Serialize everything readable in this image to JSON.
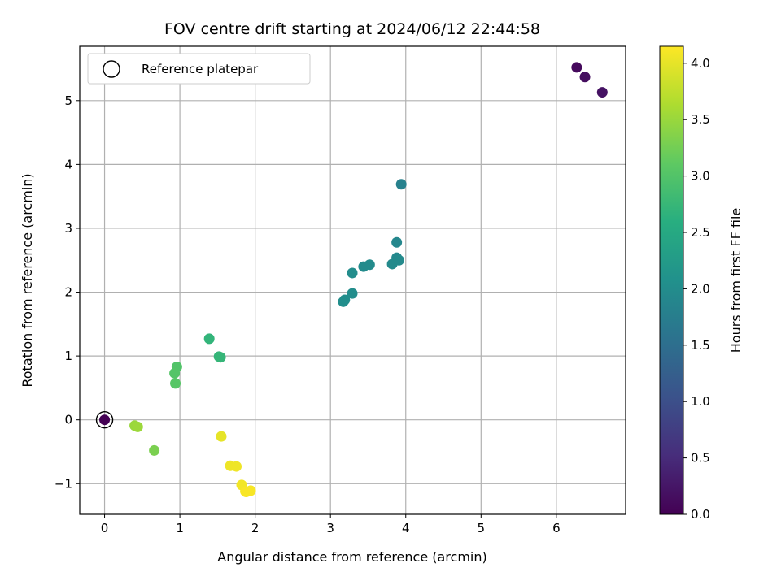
{
  "chart_data": {
    "type": "scatter",
    "title": "FOV centre drift starting at 2024/06/12 22:44:58",
    "xlabel": "Angular distance from reference (arcmin)",
    "ylabel": "Rotation from reference (arcmin)",
    "xlim": [
      -0.33,
      6.92
    ],
    "ylim": [
      -1.48,
      5.85
    ],
    "xticks": [
      0,
      1,
      2,
      3,
      4,
      5,
      6
    ],
    "yticks": [
      -1,
      0,
      1,
      2,
      3,
      4,
      5
    ],
    "grid": true,
    "colormap": "viridis",
    "colorbar": {
      "label": "Hours from first FF file",
      "range": [
        0.0,
        4.15
      ],
      "ticks": [
        "0.0",
        "0.5",
        "1.0",
        "1.5",
        "2.0",
        "2.5",
        "3.0",
        "3.5",
        "4.0"
      ]
    },
    "legend": {
      "position": "top-left",
      "entries": [
        "Reference platepar"
      ]
    },
    "reference_point": {
      "x": 0,
      "y": 0,
      "hours": 0.0
    },
    "points": [
      {
        "x": 6.27,
        "y": 5.52,
        "hours": 0.1
      },
      {
        "x": 6.38,
        "y": 5.37,
        "hours": 0.15
      },
      {
        "x": 6.61,
        "y": 5.13,
        "hours": 0.2
      },
      {
        "x": 3.94,
        "y": 3.69,
        "hours": 1.8
      },
      {
        "x": 3.88,
        "y": 2.78,
        "hours": 1.9
      },
      {
        "x": 3.88,
        "y": 2.54,
        "hours": 1.92
      },
      {
        "x": 3.91,
        "y": 2.5,
        "hours": 1.95
      },
      {
        "x": 3.82,
        "y": 2.44,
        "hours": 1.95
      },
      {
        "x": 3.52,
        "y": 2.43,
        "hours": 1.97
      },
      {
        "x": 3.44,
        "y": 2.4,
        "hours": 1.98
      },
      {
        "x": 3.29,
        "y": 2.3,
        "hours": 2.0
      },
      {
        "x": 3.29,
        "y": 1.98,
        "hours": 2.0
      },
      {
        "x": 3.19,
        "y": 1.88,
        "hours": 2.02
      },
      {
        "x": 3.17,
        "y": 1.85,
        "hours": 2.03
      },
      {
        "x": 1.39,
        "y": 1.27,
        "hours": 2.7
      },
      {
        "x": 1.52,
        "y": 0.99,
        "hours": 2.72
      },
      {
        "x": 1.54,
        "y": 0.98,
        "hours": 2.73
      },
      {
        "x": 0.96,
        "y": 0.83,
        "hours": 3.0
      },
      {
        "x": 0.93,
        "y": 0.73,
        "hours": 3.02
      },
      {
        "x": 0.94,
        "y": 0.57,
        "hours": 3.05
      },
      {
        "x": 0.66,
        "y": -0.48,
        "hours": 3.3
      },
      {
        "x": 0.4,
        "y": -0.09,
        "hours": 3.5
      },
      {
        "x": 0.44,
        "y": -0.11,
        "hours": 3.52
      },
      {
        "x": 1.55,
        "y": -0.26,
        "hours": 4.0
      },
      {
        "x": 1.67,
        "y": -0.72,
        "hours": 4.05
      },
      {
        "x": 1.75,
        "y": -0.73,
        "hours": 4.06
      },
      {
        "x": 1.82,
        "y": -1.02,
        "hours": 4.08
      },
      {
        "x": 1.87,
        "y": -1.12,
        "hours": 4.1
      },
      {
        "x": 1.94,
        "y": -1.11,
        "hours": 4.11
      },
      {
        "x": 1.88,
        "y": -1.13,
        "hours": 4.12
      }
    ]
  }
}
